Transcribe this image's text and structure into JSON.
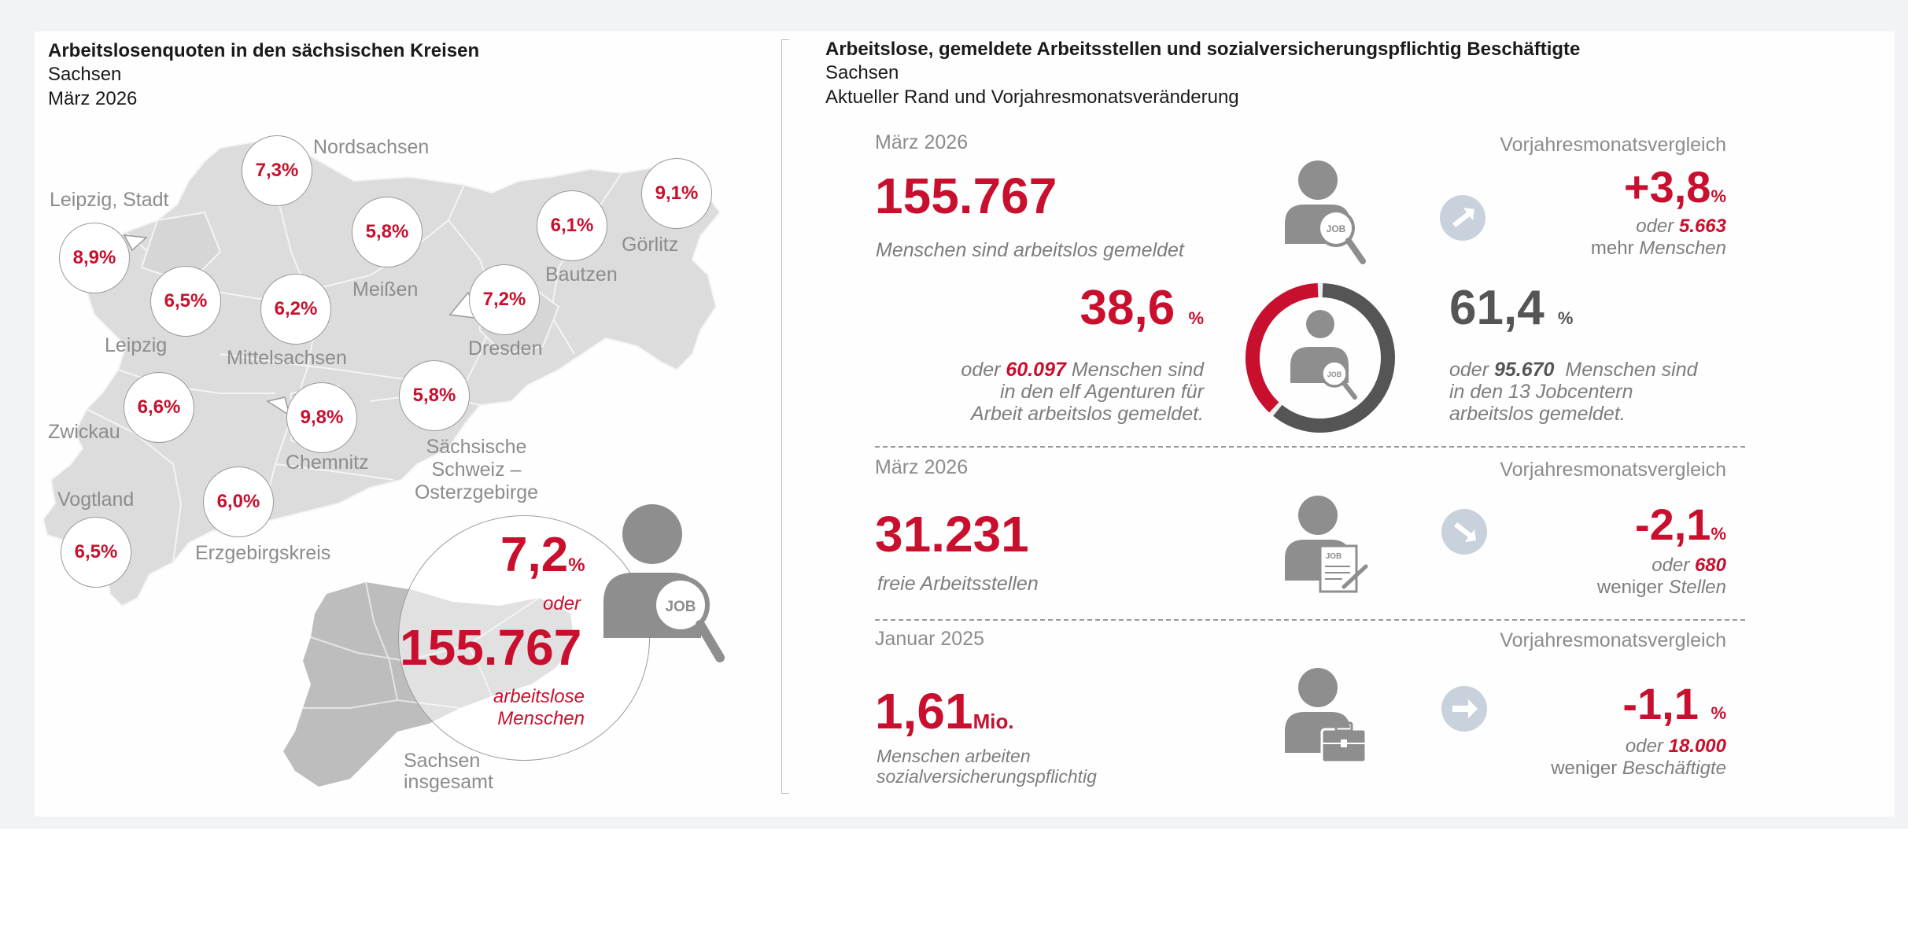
{
  "left": {
    "title": "Arbeitslosenquoten in den sächsischen Kreisen",
    "region": "Sachsen",
    "date": "März 2026",
    "districts": [
      {
        "name": "Nordsachsen",
        "rate": "7,3%"
      },
      {
        "name": "Leipzig, Stadt",
        "rate": "8,9%"
      },
      {
        "name": "Leipzig",
        "rate": "6,5%"
      },
      {
        "name": "Meißen",
        "rate": "5,8%"
      },
      {
        "name": "Mittelsachsen",
        "rate": "6,2%"
      },
      {
        "name": "Bautzen",
        "rate": "6,1%"
      },
      {
        "name": "Görlitz",
        "rate": "9,1%"
      },
      {
        "name": "Dresden",
        "rate": "7,2%"
      },
      {
        "name": "Zwickau",
        "rate": "6,6%"
      },
      {
        "name": "Chemnitz",
        "rate": "9,8%"
      },
      {
        "name": "Sächsische Schweiz – Osterzgebirge",
        "rate": "5,8%"
      },
      {
        "name": "Vogtland",
        "rate": "6,5%"
      },
      {
        "name": "Erzgebirgskreis",
        "rate": "6,0%"
      }
    ],
    "total": {
      "rate": "7,2",
      "rate_unit": "%",
      "oder": "oder",
      "count": "155.767",
      "caption": "arbeitslose Menschen",
      "label_line1": "Sachsen",
      "label_line2": "insgesamt",
      "job_badge": "JOB"
    }
  },
  "right": {
    "title": "Arbeitslose, gemeldete Arbeitsstellen und sozialversicherungspflichtig Beschäftigte",
    "region": "Sachsen",
    "subtitle": "Aktueller Rand und Vorjahresmonatsveränderung",
    "job_badge": "JOB",
    "unemployed": {
      "date": "März 2026",
      "compare_label": "Vorjahresmonatsvergleich",
      "value": "155.767",
      "caption": "Menschen sind arbeitslos gemeldet",
      "change": "+3,8",
      "change_unit": "%",
      "change_oder": "oder",
      "change_abs": "5.663",
      "change_more": "mehr",
      "change_word": "Menschen",
      "agencies_pct": "38,6",
      "agencies_pct_value": 38.6,
      "agencies_unit": "%",
      "agencies_line1_pre": "oder",
      "agencies_line1_num": "60.097",
      "agencies_line1_post": "Menschen sind",
      "agencies_line2": "in den elf Agenturen für",
      "agencies_line3": "Arbeit arbeitslos gemeldet.",
      "jobcenter_pct": "61,4",
      "jobcenter_pct_value": 61.4,
      "jobcenter_unit": "%",
      "jobcenter_line1_pre": "oder",
      "jobcenter_line1_num": "95.670",
      "jobcenter_line1_post": "Menschen sind",
      "jobcenter_line2": "in den 13 Jobcentern",
      "jobcenter_line3": "arbeitslos gemeldet.",
      "colors": {
        "agencies": "#c8102e",
        "jobcenter": "#555555"
      }
    },
    "vacancies": {
      "date": "März 2026",
      "compare_label": "Vorjahresmonatsvergleich",
      "value": "31.231",
      "caption": "freie Arbeitsstellen",
      "change": "-2,1",
      "change_unit": "%",
      "change_oder": "oder",
      "change_abs": "680",
      "change_less": "weniger",
      "change_word": "Stellen"
    },
    "employed": {
      "date": "Januar 2025",
      "compare_label": "Vorjahresmonatsvergleich",
      "value": "1,61",
      "value_unit": "Mio.",
      "caption_line1": "Menschen arbeiten",
      "caption_line2": "sozialversicherungspflichtig",
      "change": "-1,1",
      "change_unit": "%",
      "change_oder": "oder",
      "change_abs": "18.000",
      "change_less": "weniger",
      "change_word": "Beschäftigte"
    }
  }
}
